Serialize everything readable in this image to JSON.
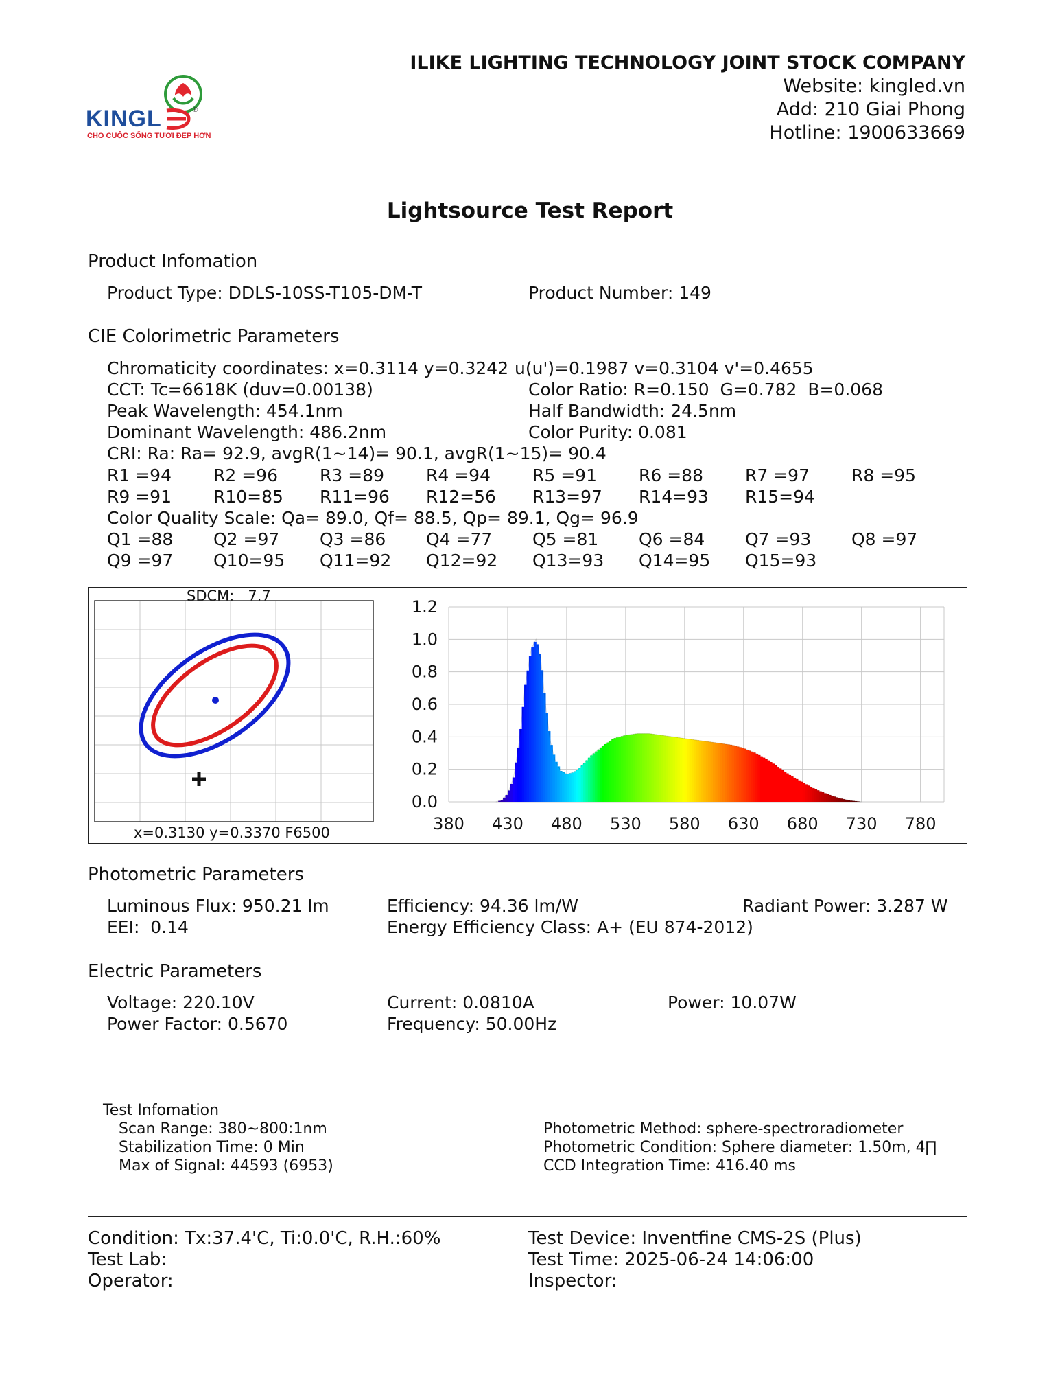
{
  "header": {
    "company": "ILIKE LIGHTING TECHNOLOGY JOINT STOCK COMPANY",
    "website": "Website: kingled.vn",
    "address": "Add: 210 Giai Phong",
    "hotline": "Hotline: 1900633669",
    "logo_text": "KINGLED",
    "logo_tagline": "CHO CUỘC SỐNG TƯƠI ĐẸP HƠN",
    "logo_registered": "®",
    "logo_colors": {
      "text": "#1f4e9c",
      "accent": "#d9232e",
      "leaf": "#2e9b3a"
    }
  },
  "title": "Lightsource Test Report",
  "product": {
    "heading": "Product Infomation",
    "type": "Product Type: DDLS-10SS-T105-DM-T",
    "number": "Product Number: 149"
  },
  "cie": {
    "heading": "CIE Colorimetric Parameters",
    "chromaticity": "Chromaticity coordinates: x=0.3114 y=0.3242",
    "uv": "u(u')=0.1987 v=0.3104 v'=0.4655",
    "cct": "CCT: Tc=6618K (duv=0.00138)",
    "color_ratio": "Color Ratio: R=0.150  G=0.782  B=0.068",
    "peak_wl": "Peak Wavelength: 454.1nm",
    "half_bw": "Half Bandwidth: 24.5nm",
    "dominant_wl": "Dominant Wavelength: 486.2nm",
    "purity": "Color Purity: 0.081",
    "cri": "CRI: Ra: Ra= 92.9, avgR(1~14)= 90.1, avgR(1~15)= 90.4",
    "r_values": [
      "R1 =94",
      "R2 =96",
      "R3 =89",
      "R4 =94",
      "R5 =91",
      "R6 =88",
      "R7 =97",
      "R8 =95",
      "R9 =91",
      "R10=85",
      "R11=96",
      "R12=56",
      "R13=97",
      "R14=93",
      "R15=94"
    ],
    "cqs": "Color Quality Scale: Qa= 89.0, Qf= 88.5, Qp= 89.1, Qg= 96.9",
    "q_values": [
      "Q1 =88",
      "Q2 =97",
      "Q3 =86",
      "Q4 =77",
      "Q5 =81",
      "Q6 =84",
      "Q7 =93",
      "Q8 =97",
      "Q9 =97",
      "Q10=95",
      "Q11=92",
      "Q12=92",
      "Q13=93",
      "Q14=95",
      "Q15=93"
    ]
  },
  "sdcm_plot": {
    "title": "SDCM:   7.7",
    "footer": "x=0.3130 y=0.3370 F6500",
    "outer_ellipse_color": "#1020d0",
    "inner_ellipse_color": "#dd1c1c"
  },
  "chart_data": {
    "type": "area",
    "title": "",
    "xlabel": "",
    "ylabel": "",
    "xlim": [
      380,
      800
    ],
    "ylim": [
      0,
      1.2
    ],
    "x_ticks": [
      380,
      430,
      480,
      530,
      580,
      630,
      680,
      730,
      780
    ],
    "y_ticks": [
      0.0,
      0.2,
      0.4,
      0.6,
      0.8,
      1.0,
      1.2
    ],
    "x_tick_labels": [
      "380",
      "430",
      "480",
      "530",
      "580",
      "630",
      "680",
      "730",
      "780"
    ],
    "y_tick_labels": [
      "0.0",
      "0.2",
      "0.4",
      "0.6",
      "0.8",
      "1.0",
      "1.2"
    ],
    "grid": true,
    "x": [
      420,
      425,
      430,
      435,
      440,
      445,
      450,
      454,
      458,
      462,
      466,
      470,
      475,
      480,
      485,
      490,
      495,
      500,
      510,
      520,
      530,
      540,
      550,
      560,
      570,
      580,
      590,
      600,
      610,
      620,
      630,
      640,
      650,
      660,
      670,
      680,
      690,
      700,
      710,
      720,
      730
    ],
    "y": [
      0.0,
      0.01,
      0.05,
      0.15,
      0.38,
      0.72,
      0.94,
      1.0,
      0.88,
      0.6,
      0.38,
      0.26,
      0.19,
      0.17,
      0.18,
      0.2,
      0.24,
      0.28,
      0.34,
      0.39,
      0.41,
      0.42,
      0.42,
      0.41,
      0.4,
      0.39,
      0.38,
      0.37,
      0.36,
      0.35,
      0.33,
      0.3,
      0.26,
      0.21,
      0.16,
      0.12,
      0.08,
      0.05,
      0.025,
      0.008,
      0.0
    ]
  },
  "photometric": {
    "heading": "Photometric Parameters",
    "flux": "Luminous Flux: 950.21 lm",
    "efficiency": "Efficiency: 94.36 lm/W",
    "radiant": "Radiant Power: 3.287 W",
    "eei": "EEI:  0.14",
    "energy_class": "Energy Efficiency Class: A+ (EU 874-2012)"
  },
  "electric": {
    "heading": "Electric Parameters",
    "voltage": "Voltage: 220.10V",
    "current": "Current: 0.0810A",
    "power": "Power: 10.07W",
    "pf": "Power Factor: 0.5670",
    "frequency": "Frequency: 50.00Hz"
  },
  "test_info": {
    "heading": "Test Infomation",
    "scan": "Scan Range: 380~800:1nm",
    "stab": "Stabilization Time: 0 Min",
    "signal": "Max of Signal: 44593 (6953)",
    "method": "Photometric Method: sphere-spectroradiometer",
    "condition": "Photometric Condition: Sphere diameter: 1.50m, 4∏",
    "ccd": "CCD Integration Time: 416.40 ms"
  },
  "footer": {
    "condition": "Condition: Tx:37.4'C, Ti:0.0'C, R.H.:60%",
    "device": "Test Device: Inventfine CMS-2S (Plus)",
    "lab": "Test Lab:",
    "time": "Test Time: 2025-06-24 14:06:00",
    "operator": "Operator:",
    "inspector": "Inspector:"
  }
}
